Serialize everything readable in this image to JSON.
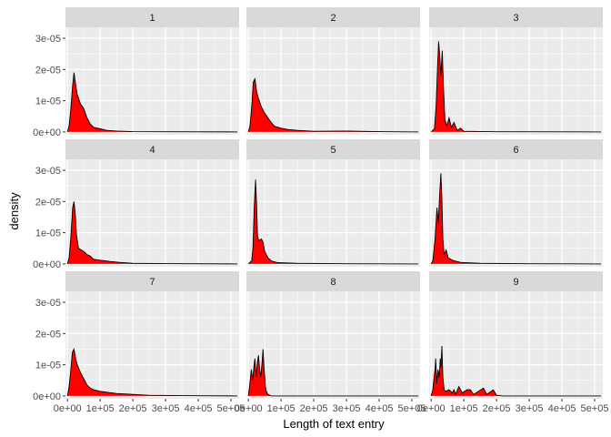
{
  "chart_data": {
    "type": "area",
    "facet_layout": "3x3",
    "xlabel": "Length of text entry",
    "ylabel": "density",
    "x_ticks": [
      0,
      100000,
      200000,
      300000,
      400000,
      500000
    ],
    "x_tick_labels": [
      "0e+00",
      "1e+05",
      "2e+05",
      "3e+05",
      "4e+05",
      "5e+05"
    ],
    "y_ticks": [
      0,
      1e-05,
      2e-05,
      3e-05
    ],
    "y_tick_labels": [
      "0e+00",
      "1e-05",
      "2e-05",
      "3e-05"
    ],
    "xlim": [
      -6000,
      525000
    ],
    "ylim": [
      -9e-07,
      3.35e-05
    ],
    "fill_color": "#ff0000",
    "line_color": "#000000",
    "panel_bg": "#ebebeb",
    "strip_bg": "#d9d9d9",
    "grid": true,
    "facets": [
      {
        "label": "1",
        "points": [
          [
            0,
            0
          ],
          [
            5000,
            2e-06
          ],
          [
            10000,
            7e-06
          ],
          [
            16000,
            1.5e-05
          ],
          [
            20000,
            1.9e-05
          ],
          [
            24000,
            1.6e-05
          ],
          [
            30000,
            1.2e-05
          ],
          [
            40000,
            9e-06
          ],
          [
            50000,
            7.5e-06
          ],
          [
            60000,
            4.5e-06
          ],
          [
            70000,
            2.5e-06
          ],
          [
            80000,
            1.5e-06
          ],
          [
            100000,
            1e-06
          ],
          [
            120000,
            5e-07
          ],
          [
            150000,
            3e-07
          ],
          [
            200000,
            1e-07
          ],
          [
            300000,
            5e-08
          ],
          [
            520000,
            0
          ]
        ]
      },
      {
        "label": "2",
        "points": [
          [
            0,
            0
          ],
          [
            5000,
            2e-06
          ],
          [
            10000,
            8e-06
          ],
          [
            15000,
            1.6e-05
          ],
          [
            20000,
            1.7e-05
          ],
          [
            25000,
            1.3e-05
          ],
          [
            30000,
            1.1e-05
          ],
          [
            40000,
            8e-06
          ],
          [
            50000,
            6e-06
          ],
          [
            60000,
            4.5e-06
          ],
          [
            70000,
            3e-06
          ],
          [
            80000,
            1.8e-06
          ],
          [
            100000,
            1.2e-06
          ],
          [
            120000,
            8e-07
          ],
          [
            150000,
            5e-07
          ],
          [
            200000,
            2e-07
          ],
          [
            300000,
            3e-07
          ],
          [
            400000,
            1e-07
          ],
          [
            520000,
            0
          ]
        ]
      },
      {
        "label": "3",
        "points": [
          [
            0,
            0
          ],
          [
            10000,
            1e-06
          ],
          [
            15000,
            8e-06
          ],
          [
            20000,
            2.2e-05
          ],
          [
            23000,
            2.9e-05
          ],
          [
            26000,
            2.5e-05
          ],
          [
            30000,
            1.8e-05
          ],
          [
            34000,
            2.6e-05
          ],
          [
            38000,
            1.4e-05
          ],
          [
            42000,
            4e-06
          ],
          [
            48000,
            2e-06
          ],
          [
            55000,
            4.5e-06
          ],
          [
            62000,
            1.5e-06
          ],
          [
            70000,
            3e-06
          ],
          [
            80000,
            5e-07
          ],
          [
            90000,
            1.2e-06
          ],
          [
            100000,
            2e-07
          ],
          [
            200000,
            5e-08
          ],
          [
            520000,
            0
          ]
        ]
      },
      {
        "label": "4",
        "points": [
          [
            0,
            0
          ],
          [
            5000,
            2e-06
          ],
          [
            10000,
            8e-06
          ],
          [
            16000,
            1.8e-05
          ],
          [
            20000,
            2e-05
          ],
          [
            24000,
            1.6e-05
          ],
          [
            28000,
            9e-06
          ],
          [
            34000,
            5e-06
          ],
          [
            42000,
            4.5e-06
          ],
          [
            50000,
            4e-06
          ],
          [
            60000,
            3e-06
          ],
          [
            70000,
            2.5e-06
          ],
          [
            80000,
            1.5e-06
          ],
          [
            100000,
            1.2e-06
          ],
          [
            130000,
            8e-07
          ],
          [
            160000,
            5e-07
          ],
          [
            200000,
            2e-07
          ],
          [
            300000,
            1e-07
          ],
          [
            520000,
            0
          ]
        ]
      },
      {
        "label": "5",
        "points": [
          [
            0,
            0
          ],
          [
            10000,
            1e-06
          ],
          [
            14000,
            5e-06
          ],
          [
            18000,
            1.8e-05
          ],
          [
            22000,
            2.7e-05
          ],
          [
            25000,
            1.9e-05
          ],
          [
            28000,
            9e-06
          ],
          [
            32000,
            7.5e-06
          ],
          [
            40000,
            8e-06
          ],
          [
            45000,
            7e-06
          ],
          [
            50000,
            4e-06
          ],
          [
            60000,
            2e-06
          ],
          [
            70000,
            1e-06
          ],
          [
            90000,
            4e-07
          ],
          [
            150000,
            2e-07
          ],
          [
            300000,
            5e-08
          ],
          [
            520000,
            0
          ]
        ]
      },
      {
        "label": "6",
        "points": [
          [
            0,
            0
          ],
          [
            5000,
            1e-06
          ],
          [
            12000,
            8e-06
          ],
          [
            18000,
            1.8e-05
          ],
          [
            22000,
            1.3e-05
          ],
          [
            26000,
            2.2e-05
          ],
          [
            30000,
            2.9e-05
          ],
          [
            33000,
            2.1e-05
          ],
          [
            36000,
            8e-06
          ],
          [
            40000,
            3e-06
          ],
          [
            46000,
            4.5e-06
          ],
          [
            52000,
            2e-06
          ],
          [
            60000,
            1.5e-06
          ],
          [
            70000,
            1e-06
          ],
          [
            90000,
            5e-07
          ],
          [
            150000,
            2e-07
          ],
          [
            300000,
            5e-08
          ],
          [
            520000,
            0
          ]
        ]
      },
      {
        "label": "7",
        "points": [
          [
            0,
            0
          ],
          [
            5000,
            3e-06
          ],
          [
            10000,
            8e-06
          ],
          [
            15000,
            1.4e-05
          ],
          [
            20000,
            1.5e-05
          ],
          [
            25000,
            1.2e-05
          ],
          [
            30000,
            1e-05
          ],
          [
            40000,
            7.5e-06
          ],
          [
            50000,
            5.5e-06
          ],
          [
            60000,
            3.5e-06
          ],
          [
            70000,
            2.5e-06
          ],
          [
            80000,
            2e-06
          ],
          [
            100000,
            1.5e-06
          ],
          [
            120000,
            1.2e-06
          ],
          [
            150000,
            8e-07
          ],
          [
            200000,
            5e-07
          ],
          [
            250000,
            2e-07
          ],
          [
            350000,
            1e-07
          ],
          [
            520000,
            0
          ]
        ]
      },
      {
        "label": "8",
        "points": [
          [
            0,
            0
          ],
          [
            5000,
            4.5e-06
          ],
          [
            9000,
            8.5e-06
          ],
          [
            13000,
            5e-06
          ],
          [
            17000,
            9.5e-06
          ],
          [
            20000,
            1.2e-05
          ],
          [
            24000,
            6e-06
          ],
          [
            28000,
            1.1e-05
          ],
          [
            31000,
            1.3e-05
          ],
          [
            34000,
            9e-06
          ],
          [
            38000,
            6e-06
          ],
          [
            42000,
            1.1e-05
          ],
          [
            45000,
            1.5e-05
          ],
          [
            48000,
            9e-06
          ],
          [
            52000,
            3e-06
          ],
          [
            55000,
            1.5e-06
          ],
          [
            60000,
            5e-07
          ],
          [
            70000,
            0
          ],
          [
            520000,
            0
          ]
        ]
      },
      {
        "label": "9",
        "points": [
          [
            0,
            0
          ],
          [
            5000,
            2e-06
          ],
          [
            9000,
            6e-06
          ],
          [
            12000,
            8.5e-06
          ],
          [
            14000,
            1.2e-05
          ],
          [
            17000,
            4e-06
          ],
          [
            21000,
            8.5e-06
          ],
          [
            25000,
            6e-06
          ],
          [
            28000,
            1.2e-05
          ],
          [
            30000,
            9e-06
          ],
          [
            33000,
            1.6e-05
          ],
          [
            36000,
            6e-06
          ],
          [
            40000,
            2e-06
          ],
          [
            45000,
            1.5e-06
          ],
          [
            55000,
            2e-06
          ],
          [
            65000,
            1e-06
          ],
          [
            70000,
            2e-06
          ],
          [
            75000,
            5e-07
          ],
          [
            85000,
            3e-06
          ],
          [
            95000,
            1e-06
          ],
          [
            110000,
            2e-06
          ],
          [
            120000,
            2e-06
          ],
          [
            130000,
            5e-07
          ],
          [
            160000,
            2.5e-06
          ],
          [
            170000,
            5e-07
          ],
          [
            190000,
            2e-06
          ],
          [
            200000,
            2e-07
          ],
          [
            220000,
            0
          ],
          [
            520000,
            0
          ]
        ]
      }
    ]
  }
}
